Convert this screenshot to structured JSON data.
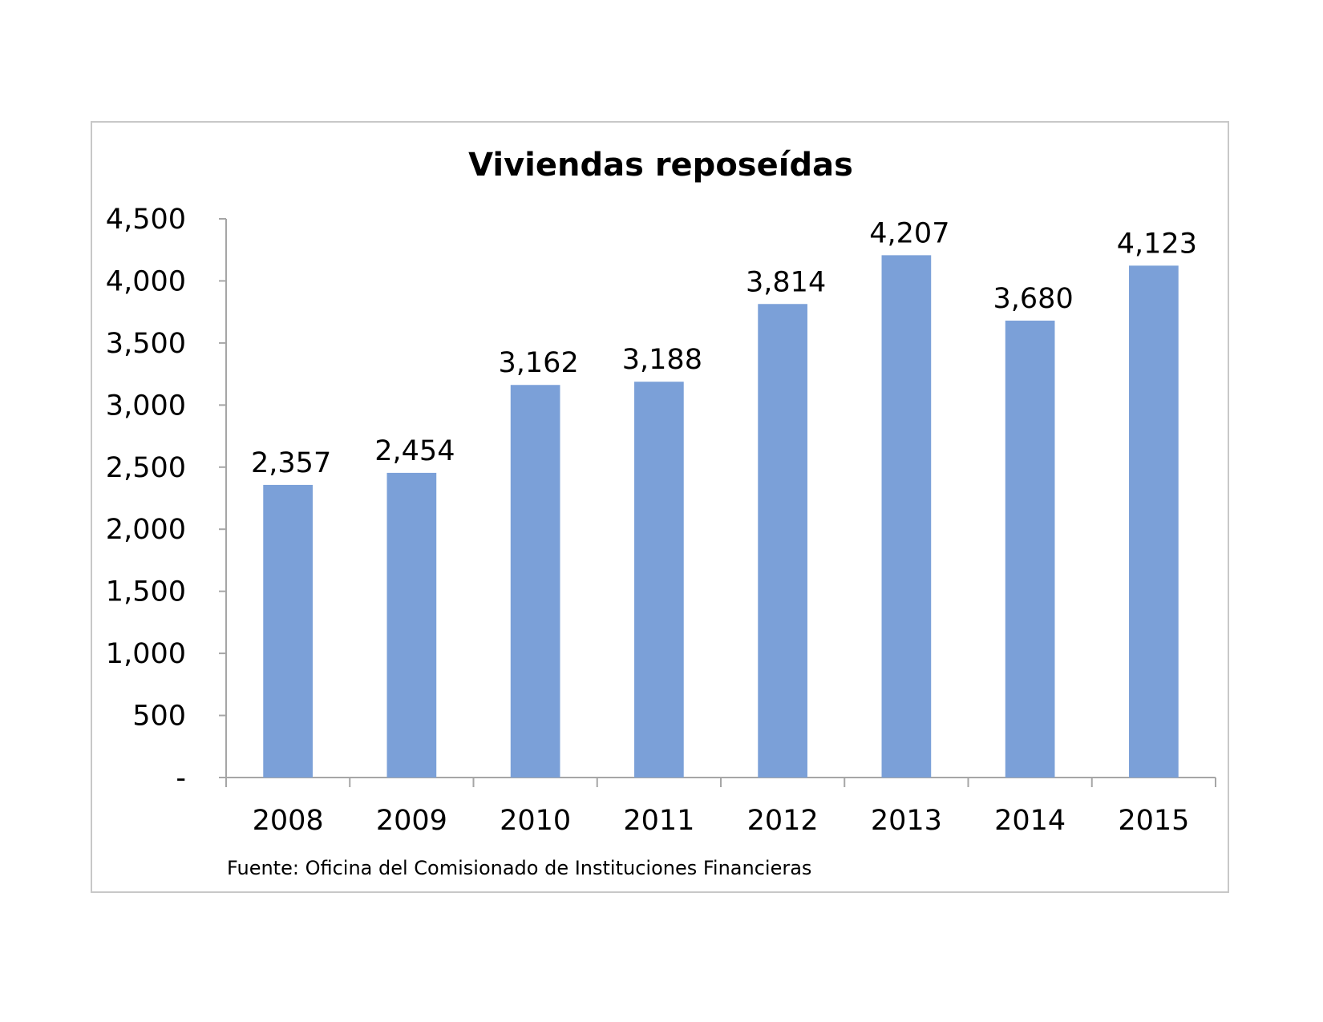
{
  "chart_data": {
    "type": "bar",
    "title": "Viviendas reposeídas",
    "xlabel": "",
    "ylabel": "",
    "categories": [
      "2008",
      "2009",
      "2010",
      "2011",
      "2012",
      "2013",
      "2014",
      "2015"
    ],
    "values": [
      2357,
      2454,
      3162,
      3188,
      3814,
      4207,
      3680,
      4123
    ],
    "data_labels": [
      "2,357",
      "2,454",
      "3,162",
      "3,188",
      "3,814",
      "4,207",
      "3,680",
      "4,123"
    ],
    "ylim": [
      0,
      4500
    ],
    "y_ticks": [
      0,
      500,
      1000,
      1500,
      2000,
      2500,
      3000,
      3500,
      4000,
      4500
    ],
    "y_tick_labels": [
      "-",
      "500",
      "1,000",
      "1,500",
      "2,000",
      "2,500",
      "3,000",
      "3,500",
      "4,000",
      "4,500"
    ],
    "bar_color": "#7ba0d8",
    "grid": false,
    "legend": "none",
    "source": "Fuente: Oficina del Comisionado de Instituciones Financieras"
  }
}
